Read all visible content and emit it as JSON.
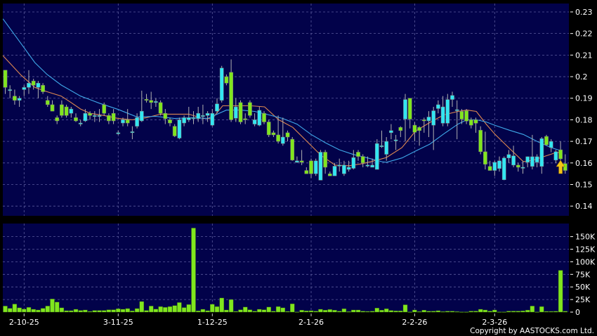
{
  "copyright": "Copyright by AASTOCKS.com Ltd.",
  "colors": {
    "background": "#000000",
    "plot_bg": "#02024a",
    "grid": "#5a5a9c",
    "up": "#33e6f2",
    "down": "#80e61e",
    "wick": "#b0b0b0",
    "ma_short": "#e08a50",
    "ma_long": "#3fa8e8",
    "volume": "#80e61e",
    "arrow": "#f2c318"
  },
  "chart_data": [
    {
      "type": "candlestick",
      "title": "",
      "y_ticks": [
        "0.23",
        "0.22",
        "0.21",
        "0.2",
        "0.19",
        "0.18",
        "0.17",
        "0.16",
        "0.15",
        "0.14"
      ],
      "y_tick_values": [
        0.23,
        0.22,
        0.21,
        0.2,
        0.19,
        0.18,
        0.17,
        0.16,
        0.15,
        0.14
      ],
      "ylim": [
        0.1355,
        0.2339
      ],
      "grid": true,
      "ohlc_fields": [
        "open",
        "high",
        "low",
        "close"
      ],
      "candles": [
        [
          0.203,
          0.203,
          0.192,
          0.195
        ],
        [
          0.194,
          0.196,
          0.19,
          0.194
        ],
        [
          0.191,
          0.194,
          0.187,
          0.189
        ],
        [
          0.189,
          0.191,
          0.186,
          0.19
        ],
        [
          0.194,
          0.196,
          0.191,
          0.195
        ],
        [
          0.195,
          0.203,
          0.192,
          0.197
        ],
        [
          0.198,
          0.199,
          0.194,
          0.196
        ],
        [
          0.195,
          0.198,
          0.19,
          0.197
        ],
        [
          0.196,
          0.197,
          0.192,
          0.193
        ],
        [
          0.189,
          0.191,
          0.186,
          0.187
        ],
        [
          0.187,
          0.189,
          0.184,
          0.184
        ],
        [
          0.181,
          0.182,
          0.178,
          0.1795
        ],
        [
          0.187,
          0.189,
          0.181,
          0.182
        ],
        [
          0.186,
          0.187,
          0.181,
          0.182
        ],
        [
          0.183,
          0.186,
          0.181,
          0.185
        ],
        [
          0.181,
          0.183,
          0.179,
          0.1795
        ],
        [
          0.1785,
          0.18,
          0.177,
          0.1785
        ],
        [
          0.1795,
          0.185,
          0.179,
          0.183
        ],
        [
          0.183,
          0.184,
          0.18,
          0.182
        ],
        [
          0.182,
          0.184,
          0.179,
          0.182
        ],
        [
          0.182,
          0.185,
          0.179,
          0.182
        ],
        [
          0.187,
          0.188,
          0.182,
          0.183
        ],
        [
          0.182,
          0.183,
          0.178,
          0.1795
        ],
        [
          0.183,
          0.185,
          0.178,
          0.1795
        ],
        [
          0.1735,
          0.175,
          0.173,
          0.174
        ],
        [
          0.1785,
          0.181,
          0.177,
          0.18
        ],
        [
          0.18,
          0.185,
          0.177,
          0.1785
        ],
        [
          0.1745,
          0.177,
          0.171,
          0.1745
        ],
        [
          0.177,
          0.183,
          0.176,
          0.181
        ],
        [
          0.1795,
          0.1935,
          0.179,
          0.184
        ],
        [
          0.1895,
          0.192,
          0.188,
          0.189
        ],
        [
          0.189,
          0.193,
          0.185,
          0.188
        ],
        [
          0.188,
          0.19,
          0.186,
          0.1885
        ],
        [
          0.188,
          0.189,
          0.182,
          0.183
        ],
        [
          0.183,
          0.185,
          0.178,
          0.1805
        ],
        [
          0.18,
          0.181,
          0.177,
          0.1785
        ],
        [
          0.177,
          0.178,
          0.172,
          0.1725
        ],
        [
          0.1715,
          0.181,
          0.171,
          0.18
        ],
        [
          0.1785,
          0.182,
          0.177,
          0.181
        ],
        [
          0.18,
          0.186,
          0.179,
          0.181
        ],
        [
          0.181,
          0.184,
          0.178,
          0.181
        ],
        [
          0.1805,
          0.186,
          0.179,
          0.183
        ],
        [
          0.182,
          0.187,
          0.178,
          0.182
        ],
        [
          0.182,
          0.184,
          0.179,
          0.183
        ],
        [
          0.1775,
          0.185,
          0.177,
          0.183
        ],
        [
          0.184,
          0.19,
          0.183,
          0.1874
        ],
        [
          0.189,
          0.205,
          0.188,
          0.204
        ],
        [
          0.2,
          0.201,
          0.196,
          0.197
        ],
        [
          0.202,
          0.208,
          0.179,
          0.18
        ],
        [
          0.1807,
          0.19,
          0.179,
          0.186
        ],
        [
          0.188,
          0.189,
          0.178,
          0.179
        ],
        [
          0.1805,
          0.183,
          0.178,
          0.18
        ],
        [
          0.188,
          0.189,
          0.181,
          0.182
        ],
        [
          0.178,
          0.183,
          0.177,
          0.18
        ],
        [
          0.1775,
          0.186,
          0.177,
          0.1844
        ],
        [
          0.183,
          0.184,
          0.178,
          0.179
        ],
        [
          0.179,
          0.18,
          0.172,
          0.173
        ],
        [
          0.174,
          0.175,
          0.172,
          0.173
        ],
        [
          0.173,
          0.182,
          0.169,
          0.17
        ],
        [
          0.169,
          0.181,
          0.168,
          0.172
        ],
        [
          0.174,
          0.175,
          0.17,
          0.172
        ],
        [
          0.171,
          0.172,
          0.161,
          0.1613
        ],
        [
          0.1603,
          0.163,
          0.16,
          0.161
        ],
        [
          0.161,
          0.166,
          0.159,
          0.1603
        ],
        [
          0.1565,
          0.158,
          0.155,
          0.155
        ],
        [
          0.161,
          0.162,
          0.153,
          0.155
        ],
        [
          0.155,
          0.162,
          0.154,
          0.161
        ],
        [
          0.152,
          0.166,
          0.152,
          0.165
        ],
        [
          0.165,
          0.166,
          0.155,
          0.158
        ],
        [
          0.155,
          0.156,
          0.154,
          0.154
        ],
        [
          0.154,
          0.16,
          0.154,
          0.1585
        ],
        [
          0.159,
          0.162,
          0.156,
          0.159
        ],
        [
          0.155,
          0.161,
          0.154,
          0.159
        ],
        [
          0.157,
          0.161,
          0.156,
          0.158
        ],
        [
          0.1575,
          0.166,
          0.157,
          0.1625
        ],
        [
          0.165,
          0.166,
          0.161,
          0.163
        ],
        [
          0.163,
          0.164,
          0.158,
          0.16
        ],
        [
          0.159,
          0.163,
          0.158,
          0.159
        ],
        [
          0.158,
          0.162,
          0.158,
          0.159
        ],
        [
          0.157,
          0.171,
          0.157,
          0.169
        ],
        [
          0.168,
          0.175,
          0.167,
          0.168
        ],
        [
          0.164,
          0.172,
          0.161,
          0.17
        ],
        [
          0.174,
          0.178,
          0.171,
          0.175
        ],
        [
          0.1705,
          0.173,
          0.166,
          0.1707
        ],
        [
          0.1765,
          0.177,
          0.172,
          0.175
        ],
        [
          0.1803,
          0.192,
          0.17,
          0.1894
        ],
        [
          0.19,
          0.19,
          0.176,
          0.1803
        ],
        [
          0.1775,
          0.179,
          0.17,
          0.1742
        ],
        [
          0.1765,
          0.177,
          0.168,
          0.175
        ],
        [
          0.18,
          0.181,
          0.174,
          0.1795
        ],
        [
          0.1795,
          0.184,
          0.172,
          0.1813
        ],
        [
          0.1775,
          0.186,
          0.166,
          0.1842
        ],
        [
          0.1852,
          0.189,
          0.183,
          0.187
        ],
        [
          0.1784,
          0.191,
          0.177,
          0.186
        ],
        [
          0.1784,
          0.192,
          0.177,
          0.1894
        ],
        [
          0.1894,
          0.193,
          0.186,
          0.1913
        ],
        [
          0.1847,
          0.189,
          0.171,
          0.1847
        ],
        [
          0.1839,
          0.185,
          0.178,
          0.1803
        ],
        [
          0.1842,
          0.185,
          0.178,
          0.1794
        ],
        [
          0.18,
          0.181,
          0.176,
          0.1775
        ],
        [
          0.18,
          0.181,
          0.174,
          0.1784
        ],
        [
          0.1752,
          0.177,
          0.164,
          0.1652
        ],
        [
          0.1652,
          0.1745,
          0.157,
          0.1594
        ],
        [
          0.1584,
          0.161,
          0.157,
          0.1565
        ],
        [
          0.1565,
          0.161,
          0.154,
          0.1603
        ],
        [
          0.1574,
          0.163,
          0.156,
          0.161
        ],
        [
          0.1522,
          0.163,
          0.152,
          0.1623
        ],
        [
          0.1623,
          0.166,
          0.16,
          0.1639
        ],
        [
          0.159,
          0.168,
          0.158,
          0.1633
        ],
        [
          0.159,
          0.16,
          0.156,
          0.158
        ],
        [
          0.158,
          0.161,
          0.155,
          0.158
        ],
        [
          0.1603,
          0.163,
          0.158,
          0.1629
        ],
        [
          0.1584,
          0.173,
          0.157,
          0.1629
        ],
        [
          0.1603,
          0.164,
          0.158,
          0.1629
        ],
        [
          0.1584,
          0.172,
          0.155,
          0.1713
        ],
        [
          0.1723,
          0.173,
          0.168,
          0.1684
        ],
        [
          0.1671,
          0.171,
          0.165,
          0.17
        ],
        [
          0.1613,
          0.166,
          0.16,
          0.1652
        ],
        [
          0.1661,
          0.17,
          0.16,
          0.1619
        ],
        [
          0.1597,
          0.164,
          0.155,
          0.1565
        ]
      ],
      "moving_averages": [
        {
          "color_key": "ma_short",
          "points": [
            [
              -0.5,
              0.2097
            ],
            [
              3.4,
              0.2006
            ],
            [
              6.3,
              0.195
            ],
            [
              8.9,
              0.193
            ],
            [
              11.9,
              0.191
            ],
            [
              14,
              0.188
            ],
            [
              16,
              0.185
            ],
            [
              18,
              0.183
            ],
            [
              21,
              0.182
            ],
            [
              24,
              0.1806
            ],
            [
              27,
              0.18
            ],
            [
              30,
              0.181
            ],
            [
              33,
              0.1826
            ],
            [
              36,
              0.1826
            ],
            [
              39,
              0.1826
            ],
            [
              42,
              0.1806
            ],
            [
              44,
              0.1806
            ],
            [
              46.2,
              0.1865
            ],
            [
              49.2,
              0.1865
            ],
            [
              52.2,
              0.1865
            ],
            [
              55.1,
              0.186
            ],
            [
              58.1,
              0.18
            ],
            [
              61.1,
              0.1765
            ],
            [
              64.1,
              0.17
            ],
            [
              67.1,
              0.1635
            ],
            [
              70.1,
              0.159
            ],
            [
              73.1,
              0.1587
            ],
            [
              76,
              0.1597
            ],
            [
              79,
              0.1613
            ],
            [
              81,
              0.1625
            ],
            [
              84.3,
              0.1671
            ],
            [
              87.2,
              0.1748
            ],
            [
              90.2,
              0.1787
            ],
            [
              93.2,
              0.1823
            ],
            [
              96.2,
              0.1839
            ],
            [
              98.1,
              0.1845
            ],
            [
              100.1,
              0.1839
            ],
            [
              102.2,
              0.178
            ],
            [
              104.1,
              0.1732
            ],
            [
              107.1,
              0.1668
            ],
            [
              110.1,
              0.1606
            ],
            [
              112.2,
              0.1613
            ],
            [
              115.2,
              0.1635
            ],
            [
              117.3,
              0.165
            ],
            [
              118.3,
              0.1642
            ]
          ]
        },
        {
          "color_key": "ma_long",
          "points": [
            [
              -0.5,
              0.2268
            ],
            [
              3.4,
              0.2152
            ],
            [
              6.3,
              0.2065
            ],
            [
              8.9,
              0.201
            ],
            [
              11.9,
              0.1961
            ],
            [
              16,
              0.191
            ],
            [
              20,
              0.1877
            ],
            [
              24,
              0.1848
            ],
            [
              28,
              0.1813
            ],
            [
              32,
              0.1816
            ],
            [
              36,
              0.1806
            ],
            [
              40,
              0.181
            ],
            [
              43,
              0.1806
            ],
            [
              44,
              0.1816
            ],
            [
              47,
              0.1845
            ],
            [
              50,
              0.1845
            ],
            [
              53,
              0.1839
            ],
            [
              56,
              0.1823
            ],
            [
              59,
              0.1806
            ],
            [
              62,
              0.178
            ],
            [
              65,
              0.1732
            ],
            [
              68,
              0.1694
            ],
            [
              71,
              0.1661
            ],
            [
              74,
              0.1639
            ],
            [
              77,
              0.1623
            ],
            [
              80,
              0.1606
            ],
            [
              81,
              0.1603
            ],
            [
              84.3,
              0.1623
            ],
            [
              87.2,
              0.1655
            ],
            [
              90.2,
              0.1687
            ],
            [
              93.2,
              0.1735
            ],
            [
              96.2,
              0.178
            ],
            [
              98.1,
              0.18
            ],
            [
              100.1,
              0.18
            ],
            [
              102.2,
              0.179
            ],
            [
              104.1,
              0.1774
            ],
            [
              107.1,
              0.1752
            ],
            [
              110.1,
              0.1732
            ],
            [
              113,
              0.17
            ],
            [
              116,
              0.1671
            ],
            [
              118.3,
              0.1655
            ]
          ]
        }
      ],
      "marker": {
        "type": "up-arrow",
        "candle": 118
      }
    },
    {
      "type": "bar",
      "title": "",
      "y_ticks": [
        "150K",
        "125K",
        "100K",
        "75K",
        "50K",
        "25K",
        "0"
      ],
      "y_tick_values": [
        150,
        125,
        100,
        75,
        50,
        25,
        0
      ],
      "unit": "K",
      "ylim": [
        0,
        176
      ],
      "grid": true,
      "values": [
        12,
        7.5,
        16,
        8.5,
        6,
        9.4,
        5.6,
        4.2,
        7.5,
        12,
        26,
        20,
        8.5,
        2.8,
        2.8,
        5.6,
        3.3,
        4.2,
        1.4,
        3.3,
        3.3,
        3.3,
        4.7,
        4.7,
        6.6,
        5.6,
        7,
        2.4,
        7,
        21,
        3.3,
        12,
        6,
        11,
        9.4,
        11,
        13,
        19,
        9,
        15,
        167,
        2.4,
        5.6,
        2.8,
        15.5,
        11,
        28,
        4.2,
        25,
        1.4,
        4.7,
        10,
        4.7,
        1.9,
        5.6,
        4.7,
        10,
        1.9,
        11,
        8.5,
        1.4,
        16.5,
        0.5,
        3.8,
        2.4,
        2.8,
        1.9,
        5.6,
        3.8,
        5.2,
        3.8,
        1.9,
        6.6,
        1,
        4.2,
        4.2,
        1.9,
        1.4,
        1.9,
        8,
        3.8,
        6.6,
        3.3,
        2.4,
        2.4,
        14.6,
        0.5,
        4.2,
        1,
        3.8,
        1.9,
        1.9,
        2.8,
        1,
        1.9,
        1.9,
        1,
        0.5,
        0.5,
        2,
        2,
        5.6,
        4.2,
        2,
        4.2,
        0.5,
        0.5,
        2,
        2,
        2,
        2.4,
        4,
        12,
        0.5,
        11,
        1.4,
        1.4,
        1.6,
        83,
        1.8
      ]
    }
  ],
  "x_ticks": [
    "2-10-25",
    "3-11-25",
    "1-12-25",
    "2-1-26",
    "2-2-26",
    "2-3-26"
  ]
}
